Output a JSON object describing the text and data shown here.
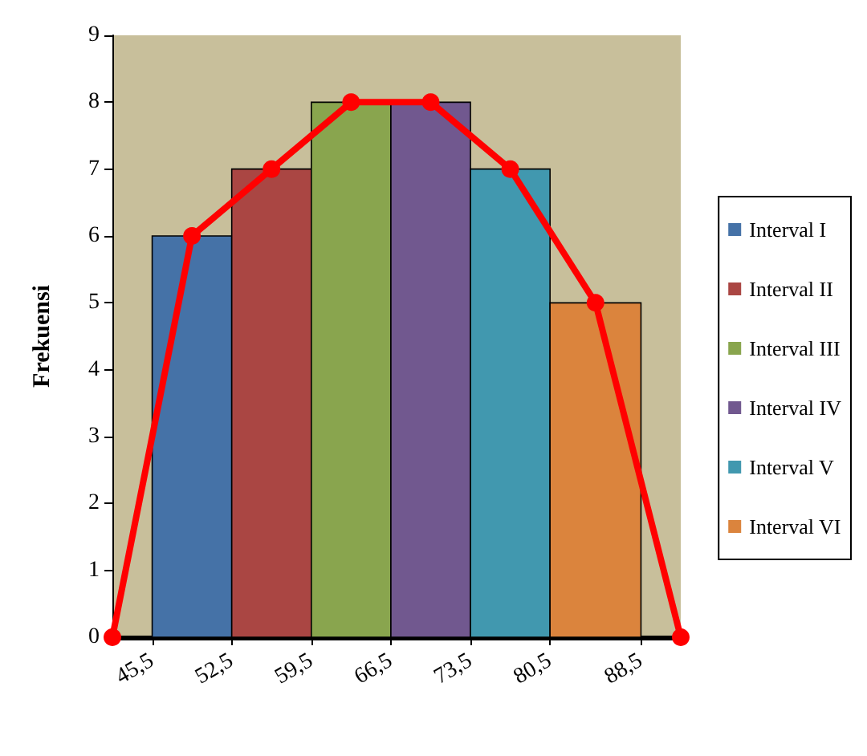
{
  "chart_data": {
    "type": "histogram",
    "ylabel": "Frekuensi",
    "bins": [
      45.5,
      52.5,
      59.5,
      66.5,
      73.5,
      80.5,
      88.5
    ],
    "series": [
      {
        "name": "Interval I",
        "color": "#4572a7",
        "values": [
          6,
          null,
          null,
          null,
          null,
          null
        ]
      },
      {
        "name": "Interval II",
        "color": "#aa4643",
        "values": [
          null,
          7,
          null,
          null,
          null,
          null
        ]
      },
      {
        "name": "Interval III",
        "color": "#89a54e",
        "values": [
          null,
          null,
          8,
          null,
          null,
          null
        ]
      },
      {
        "name": "Interval IV",
        "color": "#71588f",
        "values": [
          null,
          null,
          null,
          8,
          null,
          null
        ]
      },
      {
        "name": "Interval V",
        "color": "#4198af",
        "values": [
          null,
          null,
          null,
          null,
          7,
          null
        ]
      },
      {
        "name": "Interval VI",
        "color": "#db843d",
        "values": [
          null,
          null,
          null,
          null,
          null,
          5
        ]
      },
      {
        "type": "line",
        "color": "#ff0000",
        "marker": "circle",
        "x": [
          42,
          49,
          56,
          63,
          70,
          77,
          84.5,
          92
        ],
        "values": [
          0,
          6,
          7,
          8,
          8,
          7,
          5,
          0
        ]
      }
    ],
    "xlim": [
      42,
      92
    ],
    "xticks": [
      {
        "value": 45.5,
        "label": "45,5"
      },
      {
        "value": 52.5,
        "label": "52,5"
      },
      {
        "value": 59.5,
        "label": "59,5"
      },
      {
        "value": 66.5,
        "label": "66,5"
      },
      {
        "value": 73.5,
        "label": "73,5"
      },
      {
        "value": 80.5,
        "label": "80,5"
      },
      {
        "value": 88.5,
        "label": "88,5"
      }
    ],
    "ylim": [
      0,
      9
    ],
    "yticks": [
      0,
      1,
      2,
      3,
      4,
      5,
      6,
      7,
      8,
      9
    ],
    "grid": false,
    "legend": "right"
  }
}
